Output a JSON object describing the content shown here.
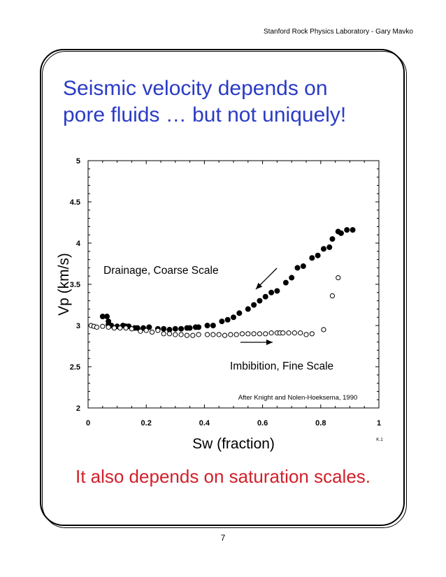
{
  "header": {
    "text": "Stanford Rock Physics Laboratory -  Gary Mavko"
  },
  "slide": {
    "title_line1": "Seismic velocity depends on",
    "title_line2": "pore fluids … but not uniquely!",
    "bottom_text": "It also depends on saturation scales.",
    "page_number": "7"
  },
  "colors": {
    "title": "#2a3bc4",
    "bottom_text": "#d0202a"
  },
  "chart_data": {
    "type": "scatter",
    "xlabel": "Sw (fraction)",
    "ylabel": "Vp (km/s)",
    "xlim": [
      0,
      1
    ],
    "ylim": [
      2,
      5
    ],
    "xticks": [
      "0",
      "0.2",
      "0.4",
      "0.6",
      "0.8",
      "1"
    ],
    "yticks": [
      "2",
      "2.5",
      "3",
      "3.5",
      "4",
      "4.5",
      "5"
    ],
    "annotations": {
      "drainage": "Drainage, Coarse Scale",
      "imbibition": "Imbibition, Fine Scale",
      "credit": "After Knight and Nolen-Hoeksema, 1990",
      "corner": "K.1"
    },
    "series": [
      {
        "marker": "filled",
        "points": [
          [
            0.05,
            3.11
          ],
          [
            0.065,
            3.11
          ],
          [
            0.07,
            3.05
          ],
          [
            0.07,
            3.01
          ],
          [
            0.08,
            3.0
          ],
          [
            0.1,
            2.99
          ],
          [
            0.12,
            3.0
          ],
          [
            0.13,
            2.99
          ],
          [
            0.14,
            2.99
          ],
          [
            0.16,
            2.97
          ],
          [
            0.17,
            2.97
          ],
          [
            0.19,
            2.97
          ],
          [
            0.21,
            2.98
          ],
          [
            0.24,
            2.96
          ],
          [
            0.26,
            2.96
          ],
          [
            0.28,
            2.95
          ],
          [
            0.3,
            2.96
          ],
          [
            0.32,
            2.96
          ],
          [
            0.34,
            2.97
          ],
          [
            0.35,
            2.97
          ],
          [
            0.37,
            2.98
          ],
          [
            0.38,
            2.98
          ],
          [
            0.41,
            3.0
          ],
          [
            0.43,
            3.0
          ],
          [
            0.46,
            3.05
          ],
          [
            0.48,
            3.07
          ],
          [
            0.5,
            3.1
          ],
          [
            0.52,
            3.15
          ],
          [
            0.55,
            3.2
          ],
          [
            0.57,
            3.25
          ],
          [
            0.59,
            3.3
          ],
          [
            0.61,
            3.35
          ],
          [
            0.63,
            3.4
          ],
          [
            0.65,
            3.42
          ],
          [
            0.68,
            3.52
          ],
          [
            0.7,
            3.58
          ],
          [
            0.72,
            3.7
          ],
          [
            0.74,
            3.72
          ],
          [
            0.77,
            3.82
          ],
          [
            0.79,
            3.85
          ],
          [
            0.81,
            3.93
          ],
          [
            0.83,
            3.95
          ],
          [
            0.84,
            4.05
          ],
          [
            0.86,
            4.14
          ],
          [
            0.87,
            4.12
          ],
          [
            0.89,
            4.16
          ],
          [
            0.91,
            4.16
          ]
        ]
      },
      {
        "marker": "open",
        "points": [
          [
            0.01,
            3.0
          ],
          [
            0.02,
            2.99
          ],
          [
            0.03,
            2.98
          ],
          [
            0.05,
            2.99
          ],
          [
            0.07,
            2.98
          ],
          [
            0.09,
            2.97
          ],
          [
            0.11,
            2.97
          ],
          [
            0.13,
            2.97
          ],
          [
            0.15,
            2.96
          ],
          [
            0.18,
            2.93
          ],
          [
            0.2,
            2.94
          ],
          [
            0.22,
            2.92
          ],
          [
            0.24,
            2.94
          ],
          [
            0.26,
            2.9
          ],
          [
            0.28,
            2.9
          ],
          [
            0.3,
            2.89
          ],
          [
            0.32,
            2.89
          ],
          [
            0.34,
            2.88
          ],
          [
            0.36,
            2.88
          ],
          [
            0.38,
            2.89
          ],
          [
            0.41,
            2.89
          ],
          [
            0.43,
            2.89
          ],
          [
            0.45,
            2.89
          ],
          [
            0.47,
            2.88
          ],
          [
            0.49,
            2.89
          ],
          [
            0.51,
            2.89
          ],
          [
            0.53,
            2.9
          ],
          [
            0.55,
            2.9
          ],
          [
            0.57,
            2.9
          ],
          [
            0.59,
            2.9
          ],
          [
            0.61,
            2.9
          ],
          [
            0.63,
            2.91
          ],
          [
            0.65,
            2.91
          ],
          [
            0.66,
            2.91
          ],
          [
            0.67,
            2.91
          ],
          [
            0.69,
            2.91
          ],
          [
            0.71,
            2.91
          ],
          [
            0.73,
            2.91
          ],
          [
            0.75,
            2.89
          ],
          [
            0.77,
            2.9
          ],
          [
            0.81,
            2.95
          ],
          [
            0.84,
            3.36
          ],
          [
            0.86,
            3.58
          ]
        ]
      }
    ]
  }
}
